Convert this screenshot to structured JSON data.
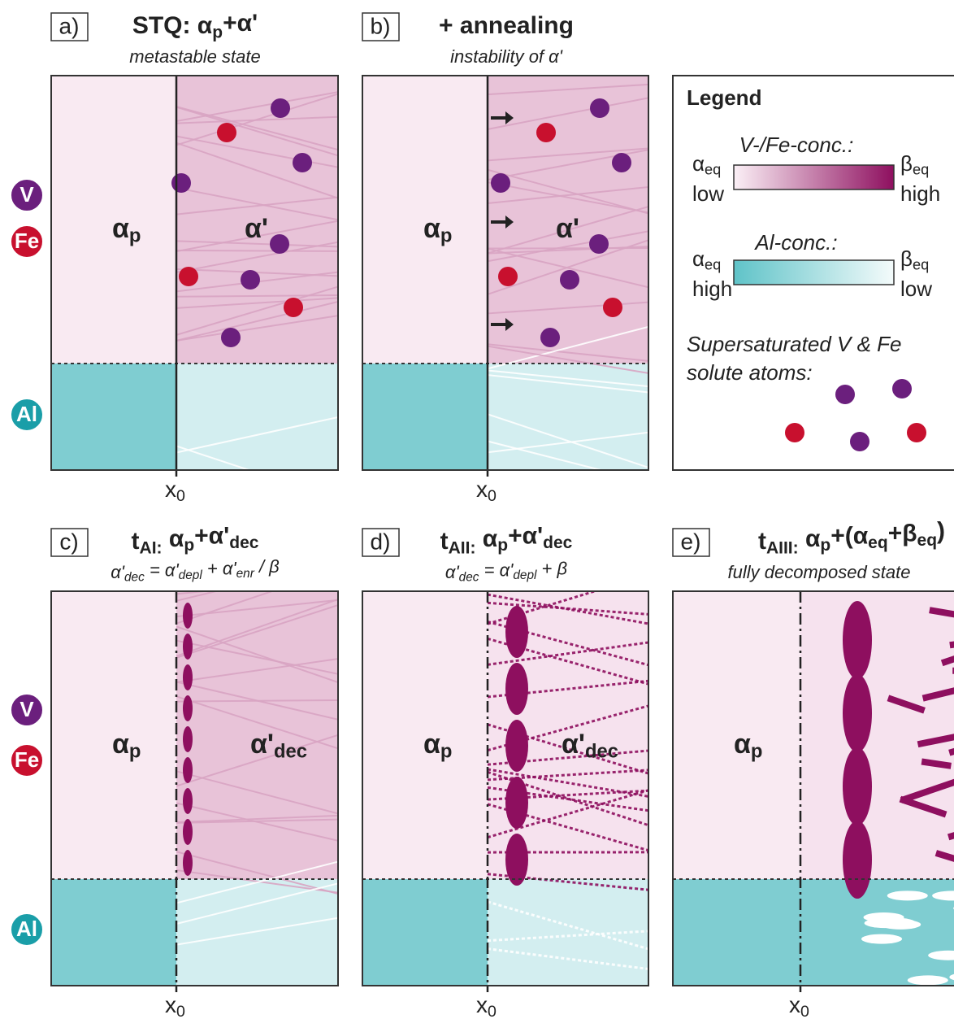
{
  "side_labels": [
    [
      "V",
      "Fe",
      "Al"
    ],
    [
      "V",
      "Fe",
      "Al"
    ]
  ],
  "panels": [
    {
      "label": "a)",
      "title": [
        "STQ: α",
        "p",
        "+α'"
      ],
      "subtitle": [
        "metastable state"
      ],
      "phase_left": [
        "α",
        "p"
      ],
      "phase_right": [
        "α'"
      ],
      "axis": [
        "x",
        "0"
      ]
    },
    {
      "label": "b)",
      "title": [
        "+ annealing"
      ],
      "subtitle": [
        "instability of α'"
      ],
      "phase_left": [
        "α",
        "p"
      ],
      "phase_right": [
        "α'"
      ],
      "axis": [
        "x",
        "0"
      ]
    },
    {
      "label": "c)",
      "title": [
        "t",
        "AI:",
        " α",
        "p",
        "+α'",
        "dec"
      ],
      "subtitle": [
        "α'",
        "dec",
        " = α'",
        "depl",
        " + α'",
        "enr",
        " / β"
      ],
      "phase_left": [
        "α",
        "p"
      ],
      "phase_right": [
        "α'",
        "dec"
      ],
      "axis": [
        "x",
        "0"
      ]
    },
    {
      "label": "d)",
      "title": [
        "t",
        "AII:",
        " α",
        "p",
        "+α'",
        "dec"
      ],
      "subtitle": [
        "α'",
        "dec",
        " = α'",
        "depl",
        " + β"
      ],
      "phase_left": [
        "α",
        "p"
      ],
      "phase_right": [
        "α'",
        "dec"
      ],
      "axis": [
        "x",
        "0"
      ]
    },
    {
      "label": "e)",
      "title": [
        "t",
        "AIII:",
        " α",
        "p",
        "+(α",
        "eq",
        "+β",
        "eq",
        ")"
      ],
      "subtitle": [
        "fully decomposed state"
      ],
      "phase_left": [
        "α",
        "p"
      ],
      "axis": [
        "x",
        "0"
      ]
    }
  ],
  "legend": {
    "title": "Legend",
    "gradient_v_fe": {
      "label": "V-/Fe-conc.:",
      "left": [
        "α",
        "eq"
      ],
      "left_level": "low",
      "right": [
        "β",
        "eq"
      ],
      "right_level": "high"
    },
    "gradient_al": {
      "label": "Al-conc.:",
      "left": [
        "α",
        "eq"
      ],
      "left_level": "high",
      "right": [
        "β",
        "eq"
      ],
      "right_level": "low"
    },
    "atoms_label": [
      "Supersaturated V & Fe",
      "solute atoms:"
    ]
  }
}
